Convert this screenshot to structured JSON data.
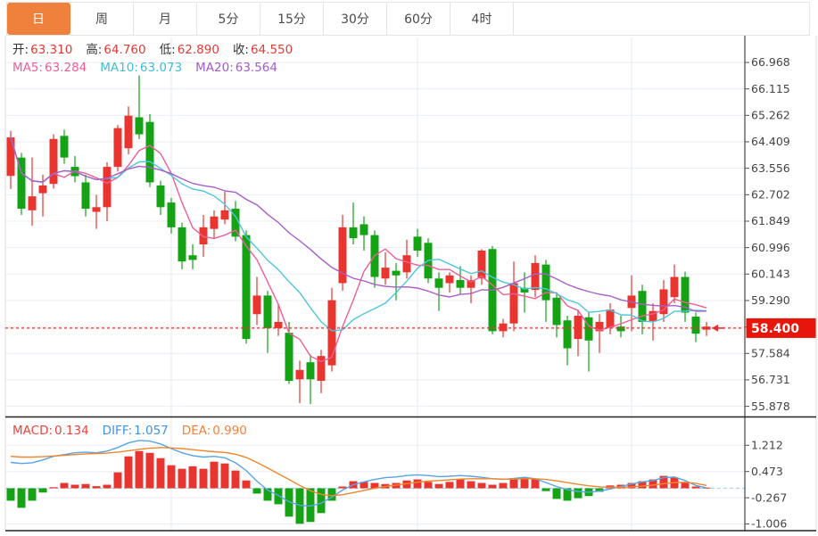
{
  "toolbar": {
    "tabs": [
      {
        "id": "day",
        "label": "日",
        "active": true
      },
      {
        "id": "week",
        "label": "周",
        "active": false
      },
      {
        "id": "month",
        "label": "月",
        "active": false
      },
      {
        "id": "m5",
        "label": "5分",
        "active": false
      },
      {
        "id": "m15",
        "label": "15分",
        "active": false
      },
      {
        "id": "m30",
        "label": "30分",
        "active": false
      },
      {
        "id": "m60",
        "label": "60分",
        "active": false
      },
      {
        "id": "h4",
        "label": "4时",
        "active": false
      }
    ]
  },
  "legend": {
    "ohlc": {
      "open_label": "开:",
      "open": "63.310",
      "high_label": "高:",
      "high": "64.760",
      "low_label": "低:",
      "low": "62.890",
      "close_label": "收:",
      "close": "64.550"
    },
    "ma": {
      "ma5_label": "MA5:",
      "ma5": "63.284",
      "ma10_label": "MA10:",
      "ma10": "63.073",
      "ma20_label": "MA20:",
      "ma20": "63.564"
    },
    "macd": {
      "macd_label": "MACD:",
      "macd": "0.134",
      "diff_label": "DIFF:",
      "diff": "1.057",
      "dea_label": "DEA:",
      "dea": "0.990"
    }
  },
  "colors": {
    "tab_active_bg": "#f0813c",
    "up_candle": "#e8352f",
    "down_candle": "#15a315",
    "ma5_line": "#ed5e98",
    "ma10_line": "#4dc6dc",
    "ma20_line": "#a95ec6",
    "diff_line": "#56a5e8",
    "dea_line": "#f0862e",
    "price_line": "#e8302e",
    "badge_bg": "#e8160a",
    "grid": "#eaeef5",
    "grid_vertical": "#e3ebf3",
    "axis_text": "#444444",
    "panel_border": "#222222",
    "outer_border": "#dddddd",
    "zero_dash": "#a9d7ee"
  },
  "chart_data": {
    "type": "candlestick",
    "title": "",
    "legend_position": "top-left",
    "grid": true,
    "main": {
      "current_price": "58.400",
      "price_line_value": 58.4,
      "y_ticks": [
        "66.968",
        "66.115",
        "65.262",
        "64.409",
        "63.556",
        "62.702",
        "61.849",
        "60.996",
        "60.143",
        "59.290",
        "58.437",
        "57.584",
        "56.731",
        "55.878"
      ],
      "y_range_drawn": [
        55.6,
        67.8
      ],
      "ma_periods": [
        5,
        10,
        20
      ],
      "x_gridline_indices": [
        15,
        38,
        58
      ],
      "candles_ohlc": [
        [
          63.31,
          64.76,
          62.89,
          64.55
        ],
        [
          63.9,
          64.05,
          62.05,
          62.25
        ],
        [
          62.2,
          63.9,
          61.7,
          62.65
        ],
        [
          62.75,
          63.35,
          62.0,
          63.0
        ],
        [
          63.05,
          64.65,
          62.9,
          64.5
        ],
        [
          64.6,
          64.8,
          63.7,
          63.9
        ],
        [
          63.6,
          63.95,
          63.1,
          63.3
        ],
        [
          63.1,
          63.35,
          62.0,
          62.25
        ],
        [
          62.15,
          62.7,
          61.6,
          62.3
        ],
        [
          62.3,
          63.75,
          61.85,
          63.6
        ],
        [
          63.6,
          64.95,
          63.45,
          64.85
        ],
        [
          64.2,
          65.55,
          64.0,
          65.25
        ],
        [
          65.2,
          66.55,
          64.5,
          64.65
        ],
        [
          65.05,
          65.3,
          62.95,
          63.1
        ],
        [
          63.0,
          63.15,
          62.05,
          62.3
        ],
        [
          62.45,
          62.6,
          61.45,
          61.65
        ],
        [
          61.65,
          61.8,
          60.3,
          60.55
        ],
        [
          60.75,
          61.1,
          60.3,
          60.6
        ],
        [
          61.1,
          62.05,
          60.7,
          61.65
        ],
        [
          61.6,
          62.2,
          61.3,
          62.0
        ],
        [
          61.9,
          62.8,
          61.75,
          62.2
        ],
        [
          62.25,
          62.5,
          61.2,
          61.35
        ],
        [
          61.4,
          61.55,
          57.9,
          58.05
        ],
        [
          58.85,
          60.05,
          58.5,
          59.45
        ],
        [
          59.45,
          59.6,
          57.6,
          58.4
        ],
        [
          58.4,
          59.2,
          58.15,
          58.6
        ],
        [
          58.25,
          58.6,
          56.6,
          56.7
        ],
        [
          56.75,
          57.35,
          55.98,
          57.05
        ],
        [
          57.3,
          57.55,
          55.95,
          56.75
        ],
        [
          56.7,
          57.7,
          56.3,
          57.5
        ],
        [
          57.2,
          59.7,
          57.0,
          59.3
        ],
        [
          59.85,
          62.05,
          59.6,
          61.65
        ],
        [
          61.65,
          62.45,
          61.1,
          61.3
        ],
        [
          61.75,
          62.0,
          60.9,
          61.4
        ],
        [
          61.4,
          61.55,
          59.7,
          60.05
        ],
        [
          60.0,
          60.85,
          59.8,
          60.35
        ],
        [
          60.25,
          60.5,
          59.3,
          60.1
        ],
        [
          60.2,
          61.25,
          60.0,
          60.75
        ],
        [
          61.35,
          61.6,
          60.7,
          60.9
        ],
        [
          61.15,
          61.3,
          59.85,
          60.0
        ],
        [
          60.0,
          60.2,
          58.95,
          59.7
        ],
        [
          59.85,
          60.2,
          59.55,
          60.1
        ],
        [
          59.95,
          60.4,
          59.5,
          59.7
        ],
        [
          59.7,
          60.1,
          59.2,
          59.95
        ],
        [
          60.0,
          60.95,
          59.8,
          60.9
        ],
        [
          60.95,
          61.05,
          58.2,
          58.3
        ],
        [
          58.3,
          58.7,
          58.1,
          58.55
        ],
        [
          58.55,
          60.55,
          58.3,
          59.85
        ],
        [
          59.7,
          60.2,
          58.9,
          59.55
        ],
        [
          59.63,
          60.75,
          59.4,
          60.5
        ],
        [
          60.45,
          60.6,
          58.6,
          59.3
        ],
        [
          59.38,
          59.5,
          58.1,
          58.5
        ],
        [
          58.65,
          58.8,
          57.2,
          57.75
        ],
        [
          58.05,
          59.0,
          57.5,
          58.8
        ],
        [
          58.75,
          58.9,
          57.0,
          58.0
        ],
        [
          58.3,
          58.85,
          57.6,
          58.6
        ],
        [
          58.42,
          59.2,
          58.2,
          59.0
        ],
        [
          58.45,
          58.8,
          58.1,
          58.3
        ],
        [
          59.05,
          60.1,
          58.3,
          59.45
        ],
        [
          59.6,
          59.8,
          58.2,
          58.6
        ],
        [
          58.63,
          59.2,
          58.0,
          58.95
        ],
        [
          58.85,
          59.95,
          58.6,
          59.65
        ],
        [
          59.4,
          60.45,
          59.2,
          60.05
        ],
        [
          60.05,
          60.22,
          58.6,
          58.9
        ],
        [
          58.77,
          58.9,
          57.95,
          58.22
        ],
        [
          58.35,
          58.6,
          58.15,
          58.45
        ]
      ]
    },
    "macd": {
      "y_ticks": [
        "1.212",
        "0.473",
        "-0.267",
        "-1.006"
      ],
      "hist": [
        -0.35,
        -0.55,
        -0.35,
        -0.12,
        0.03,
        0.15,
        0.1,
        0.12,
        0.06,
        0.1,
        0.45,
        0.9,
        1.05,
        1.0,
        0.85,
        0.65,
        0.55,
        0.62,
        0.55,
        0.75,
        0.7,
        0.5,
        0.22,
        -0.15,
        -0.35,
        -0.45,
        -0.8,
        -1.0,
        -0.95,
        -0.7,
        -0.35,
        0.05,
        0.2,
        0.18,
        0.15,
        0.12,
        0.15,
        0.22,
        0.25,
        0.18,
        0.12,
        0.18,
        0.25,
        0.2,
        0.15,
        0.1,
        0.15,
        0.28,
        0.3,
        0.25,
        -0.08,
        -0.3,
        -0.35,
        -0.28,
        -0.22,
        -0.1,
        0.08,
        0.1,
        0.15,
        0.2,
        0.25,
        0.35,
        0.3,
        0.15,
        0.05,
        0.02
      ],
      "diff": [
        0.73,
        0.7,
        0.72,
        0.8,
        0.9,
        0.95,
        1.0,
        1.02,
        1.0,
        1.05,
        1.15,
        1.28,
        1.35,
        1.33,
        1.25,
        1.12,
        1.0,
        0.92,
        0.88,
        0.9,
        0.86,
        0.72,
        0.5,
        0.2,
        -0.05,
        -0.2,
        -0.38,
        -0.48,
        -0.5,
        -0.42,
        -0.25,
        -0.05,
        0.1,
        0.18,
        0.25,
        0.3,
        0.32,
        0.36,
        0.38,
        0.36,
        0.33,
        0.34,
        0.36,
        0.34,
        0.31,
        0.27,
        0.25,
        0.28,
        0.31,
        0.27,
        0.16,
        0.05,
        -0.04,
        -0.09,
        -0.11,
        -0.08,
        -0.02,
        0.05,
        0.12,
        0.18,
        0.22,
        0.3,
        0.32,
        0.22,
        0.08,
        0.01
      ],
      "dea": [
        0.9,
        0.88,
        0.88,
        0.89,
        0.91,
        0.93,
        0.95,
        0.97,
        0.98,
        0.99,
        1.02,
        1.06,
        1.1,
        1.13,
        1.15,
        1.14,
        1.12,
        1.09,
        1.06,
        1.03,
        1.01,
        0.96,
        0.87,
        0.73,
        0.57,
        0.41,
        0.25,
        0.08,
        -0.07,
        -0.17,
        -0.21,
        -0.18,
        -0.12,
        -0.06,
        0.0,
        0.05,
        0.09,
        0.13,
        0.17,
        0.2,
        0.22,
        0.24,
        0.26,
        0.27,
        0.27,
        0.27,
        0.26,
        0.26,
        0.27,
        0.27,
        0.25,
        0.21,
        0.16,
        0.11,
        0.07,
        0.04,
        0.03,
        0.03,
        0.04,
        0.06,
        0.09,
        0.13,
        0.16,
        0.17,
        0.14,
        0.08
      ]
    }
  }
}
